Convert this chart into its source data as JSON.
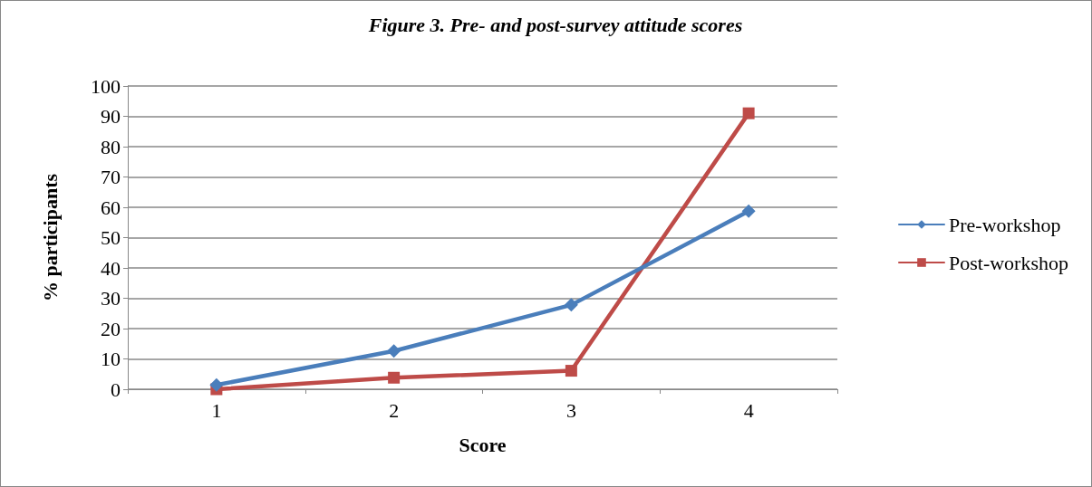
{
  "chart_data": {
    "type": "line",
    "title": "Figure 3. Pre- and post-survey attitude scores",
    "xlabel": "Score",
    "ylabel": "% participants",
    "categories": [
      "1",
      "2",
      "3",
      "4"
    ],
    "series": [
      {
        "name": "Pre-workshop",
        "color": "#4a7ebb",
        "marker": "diamond",
        "values": [
          1.4,
          12.6,
          27.8,
          58.7
        ]
      },
      {
        "name": "Post-workshop",
        "color": "#be4b48",
        "marker": "square",
        "values": [
          0,
          3.8,
          6.1,
          91
        ]
      }
    ],
    "ylim": [
      0,
      100
    ],
    "yticks": [
      0,
      10,
      20,
      30,
      40,
      50,
      60,
      70,
      80,
      90,
      100
    ],
    "grid": "y",
    "legend": "right",
    "line_style": "solid"
  }
}
